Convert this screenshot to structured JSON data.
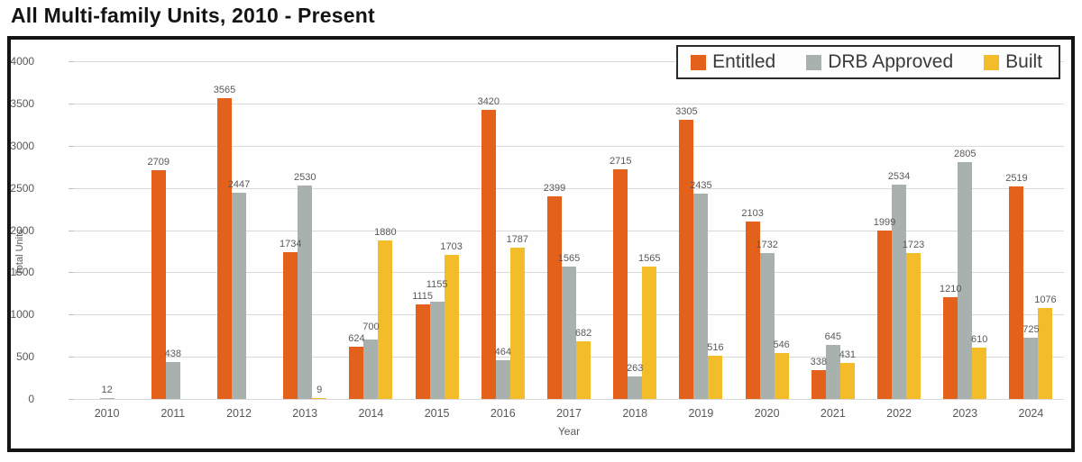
{
  "title": "All Multi-family Units, 2010 - Present",
  "chart_data": {
    "type": "bar",
    "title": "All Multi-family Units, 2010 - Present",
    "xlabel": "Year",
    "ylabel": "Total Units",
    "ylim": [
      0,
      4000
    ],
    "yticks": [
      0,
      500,
      1000,
      1500,
      2000,
      2500,
      3000,
      3500,
      4000
    ],
    "grid": true,
    "legend_position": "top-right",
    "categories": [
      "2010",
      "2011",
      "2012",
      "2013",
      "2014",
      "2015",
      "2016",
      "2017",
      "2018",
      "2019",
      "2020",
      "2021",
      "2022",
      "2023",
      "2024"
    ],
    "series": [
      {
        "name": "Entitled",
        "color": "#e4611b",
        "values": [
          null,
          2709,
          3565,
          1734,
          624,
          1115,
          3420,
          2399,
          2715,
          3305,
          2103,
          338,
          1999,
          1210,
          2519
        ]
      },
      {
        "name": "DRB Approved",
        "color": "#a9b1ae",
        "values": [
          12,
          438,
          2447,
          2530,
          700,
          1155,
          464,
          1565,
          263,
          2435,
          1732,
          645,
          2534,
          2805,
          725
        ]
      },
      {
        "name": "Built",
        "color": "#f2bd29",
        "values": [
          null,
          null,
          null,
          9,
          1880,
          1703,
          1787,
          682,
          1565,
          516,
          546,
          431,
          1723,
          610,
          1076
        ]
      }
    ]
  },
  "colors": {
    "entitled": "#e4611b",
    "drb_approved": "#a9b1ae",
    "built": "#f2bd29",
    "gridline": "#d9d9d9",
    "label_text": "#595959",
    "frame_border": "#141414"
  }
}
